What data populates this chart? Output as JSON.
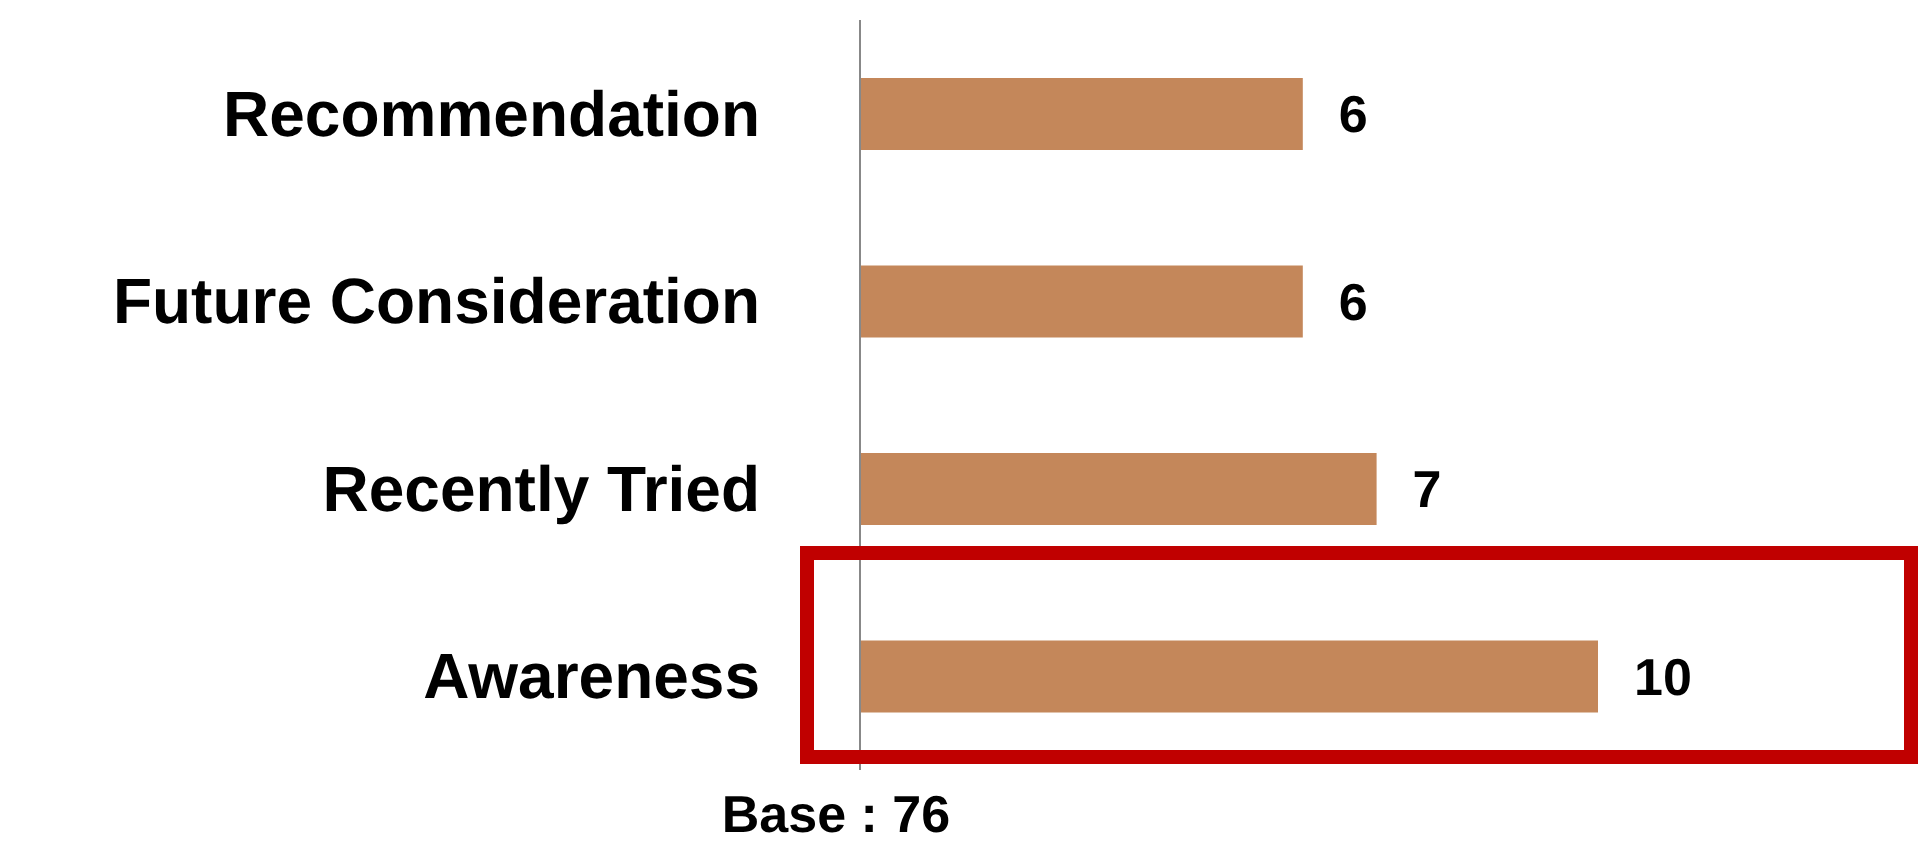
{
  "chart_data": {
    "type": "bar",
    "orientation": "horizontal",
    "categories": [
      "Recommendation",
      "Future Consideration",
      "Recently Tried",
      "Awareness"
    ],
    "values": [
      6,
      6,
      7,
      10
    ],
    "color": "#c4875a",
    "data_labels": true,
    "annotations": [
      "Base : 76"
    ]
  }
}
